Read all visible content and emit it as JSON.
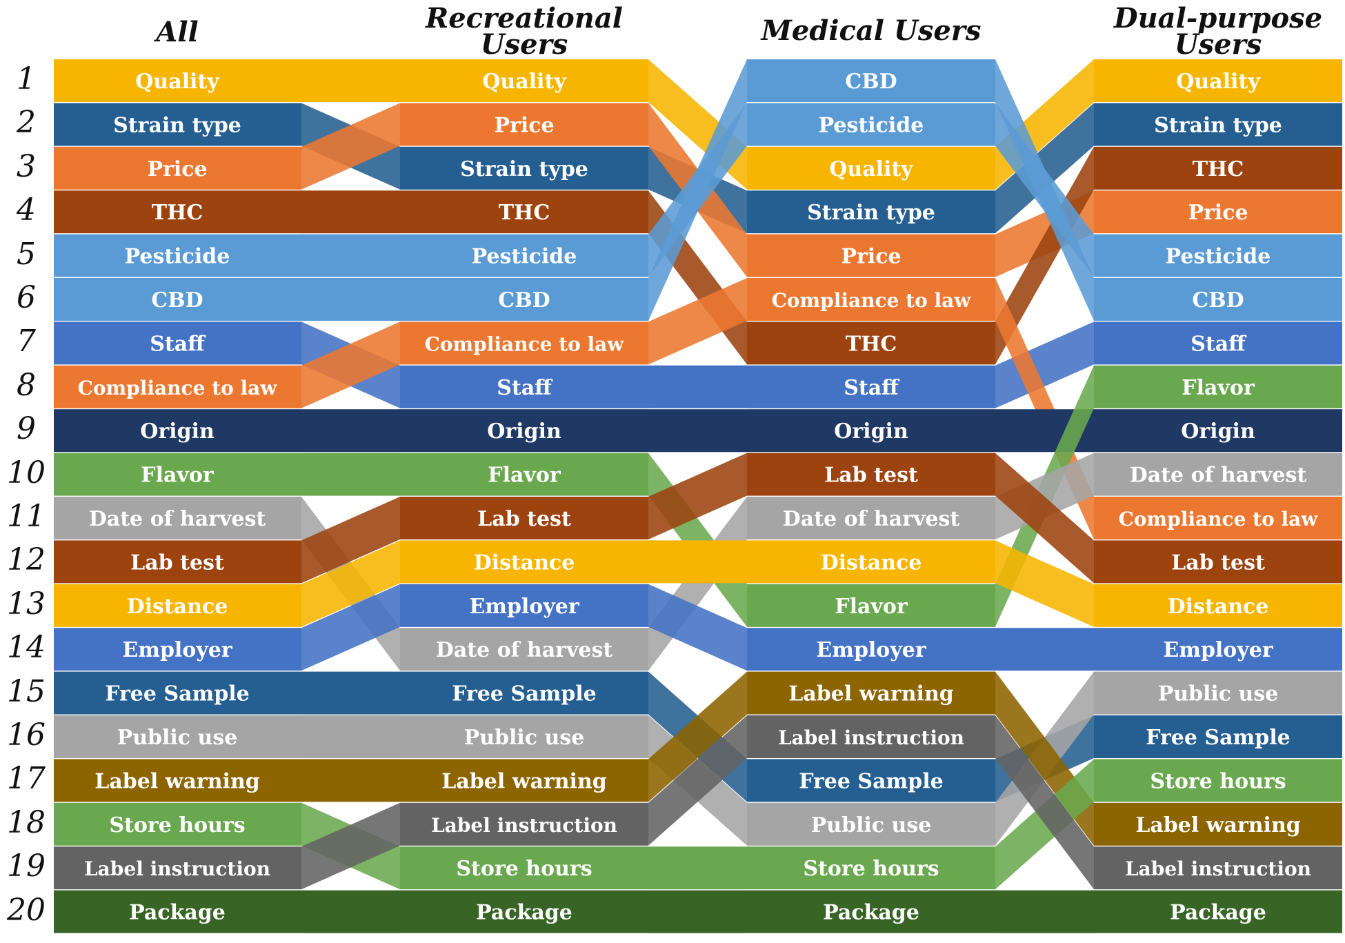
{
  "headers": [
    "All",
    "Recreational Users",
    "Medical Users",
    "Dual-purpose Users"
  ],
  "ranks": [
    "1",
    "2",
    "3",
    "4",
    "5",
    "6",
    "7",
    "8",
    "9",
    "10",
    "11",
    "12",
    "13",
    "14",
    "15",
    "16",
    "17",
    "18",
    "19",
    "20"
  ],
  "colors": {
    "Quality": "#f7b500",
    "Strain type": "#255e91",
    "Price": "#ec7730",
    "THC": "#9c4310",
    "Pesticide": "#5b9bd5",
    "CBD": "#5b9bd5",
    "Staff": "#4472c4",
    "Compliance to law": "#ec7730",
    "Origin": "#1f3864",
    "Flavor": "#6aa84f",
    "Date of harvest": "#a5a5a5",
    "Lab test": "#9c4310",
    "Distance": "#f7b500",
    "Employer": "#4472c4",
    "Free Sample": "#255e91",
    "Public use": "#a5a5a5",
    "Label warning": "#8c6400",
    "Store hours": "#6aa84f",
    "Label instruction": "#636363",
    "Package": "#386526"
  },
  "columns": [
    [
      "Quality",
      "Strain type",
      "Price",
      "THC",
      "Pesticide",
      "CBD",
      "Staff",
      "Compliance to law",
      "Origin",
      "Flavor",
      "Date of harvest",
      "Lab test",
      "Distance",
      "Employer",
      "Free Sample",
      "Public use",
      "Label warning",
      "Store hours",
      "Label instruction",
      "Package"
    ],
    [
      "Quality",
      "Price",
      "Strain type",
      "THC",
      "Pesticide",
      "CBD",
      "Compliance to law",
      "Staff",
      "Origin",
      "Flavor",
      "Lab test",
      "Distance",
      "Employer",
      "Date of harvest",
      "Free Sample",
      "Public use",
      "Label warning",
      "Label instruction",
      "Store hours",
      "Package"
    ],
    [
      "CBD",
      "Pesticide",
      "Quality",
      "Strain type",
      "Price",
      "Compliance to law",
      "THC",
      "Staff",
      "Origin",
      "Lab test",
      "Date of harvest",
      "Distance",
      "Flavor",
      "Employer",
      "Label warning",
      "Label instruction",
      "Free Sample",
      "Public use",
      "Store hours",
      "Package"
    ],
    [
      "Quality",
      "Strain type",
      "THC",
      "Price",
      "Pesticide",
      "CBD",
      "Staff",
      "Flavor",
      "Origin",
      "Date of harvest",
      "Compliance to law",
      "Lab test",
      "Distance",
      "Employer",
      "Public use",
      "Free Sample",
      "Store hours",
      "Label warning",
      "Label instruction",
      "Package"
    ]
  ]
}
